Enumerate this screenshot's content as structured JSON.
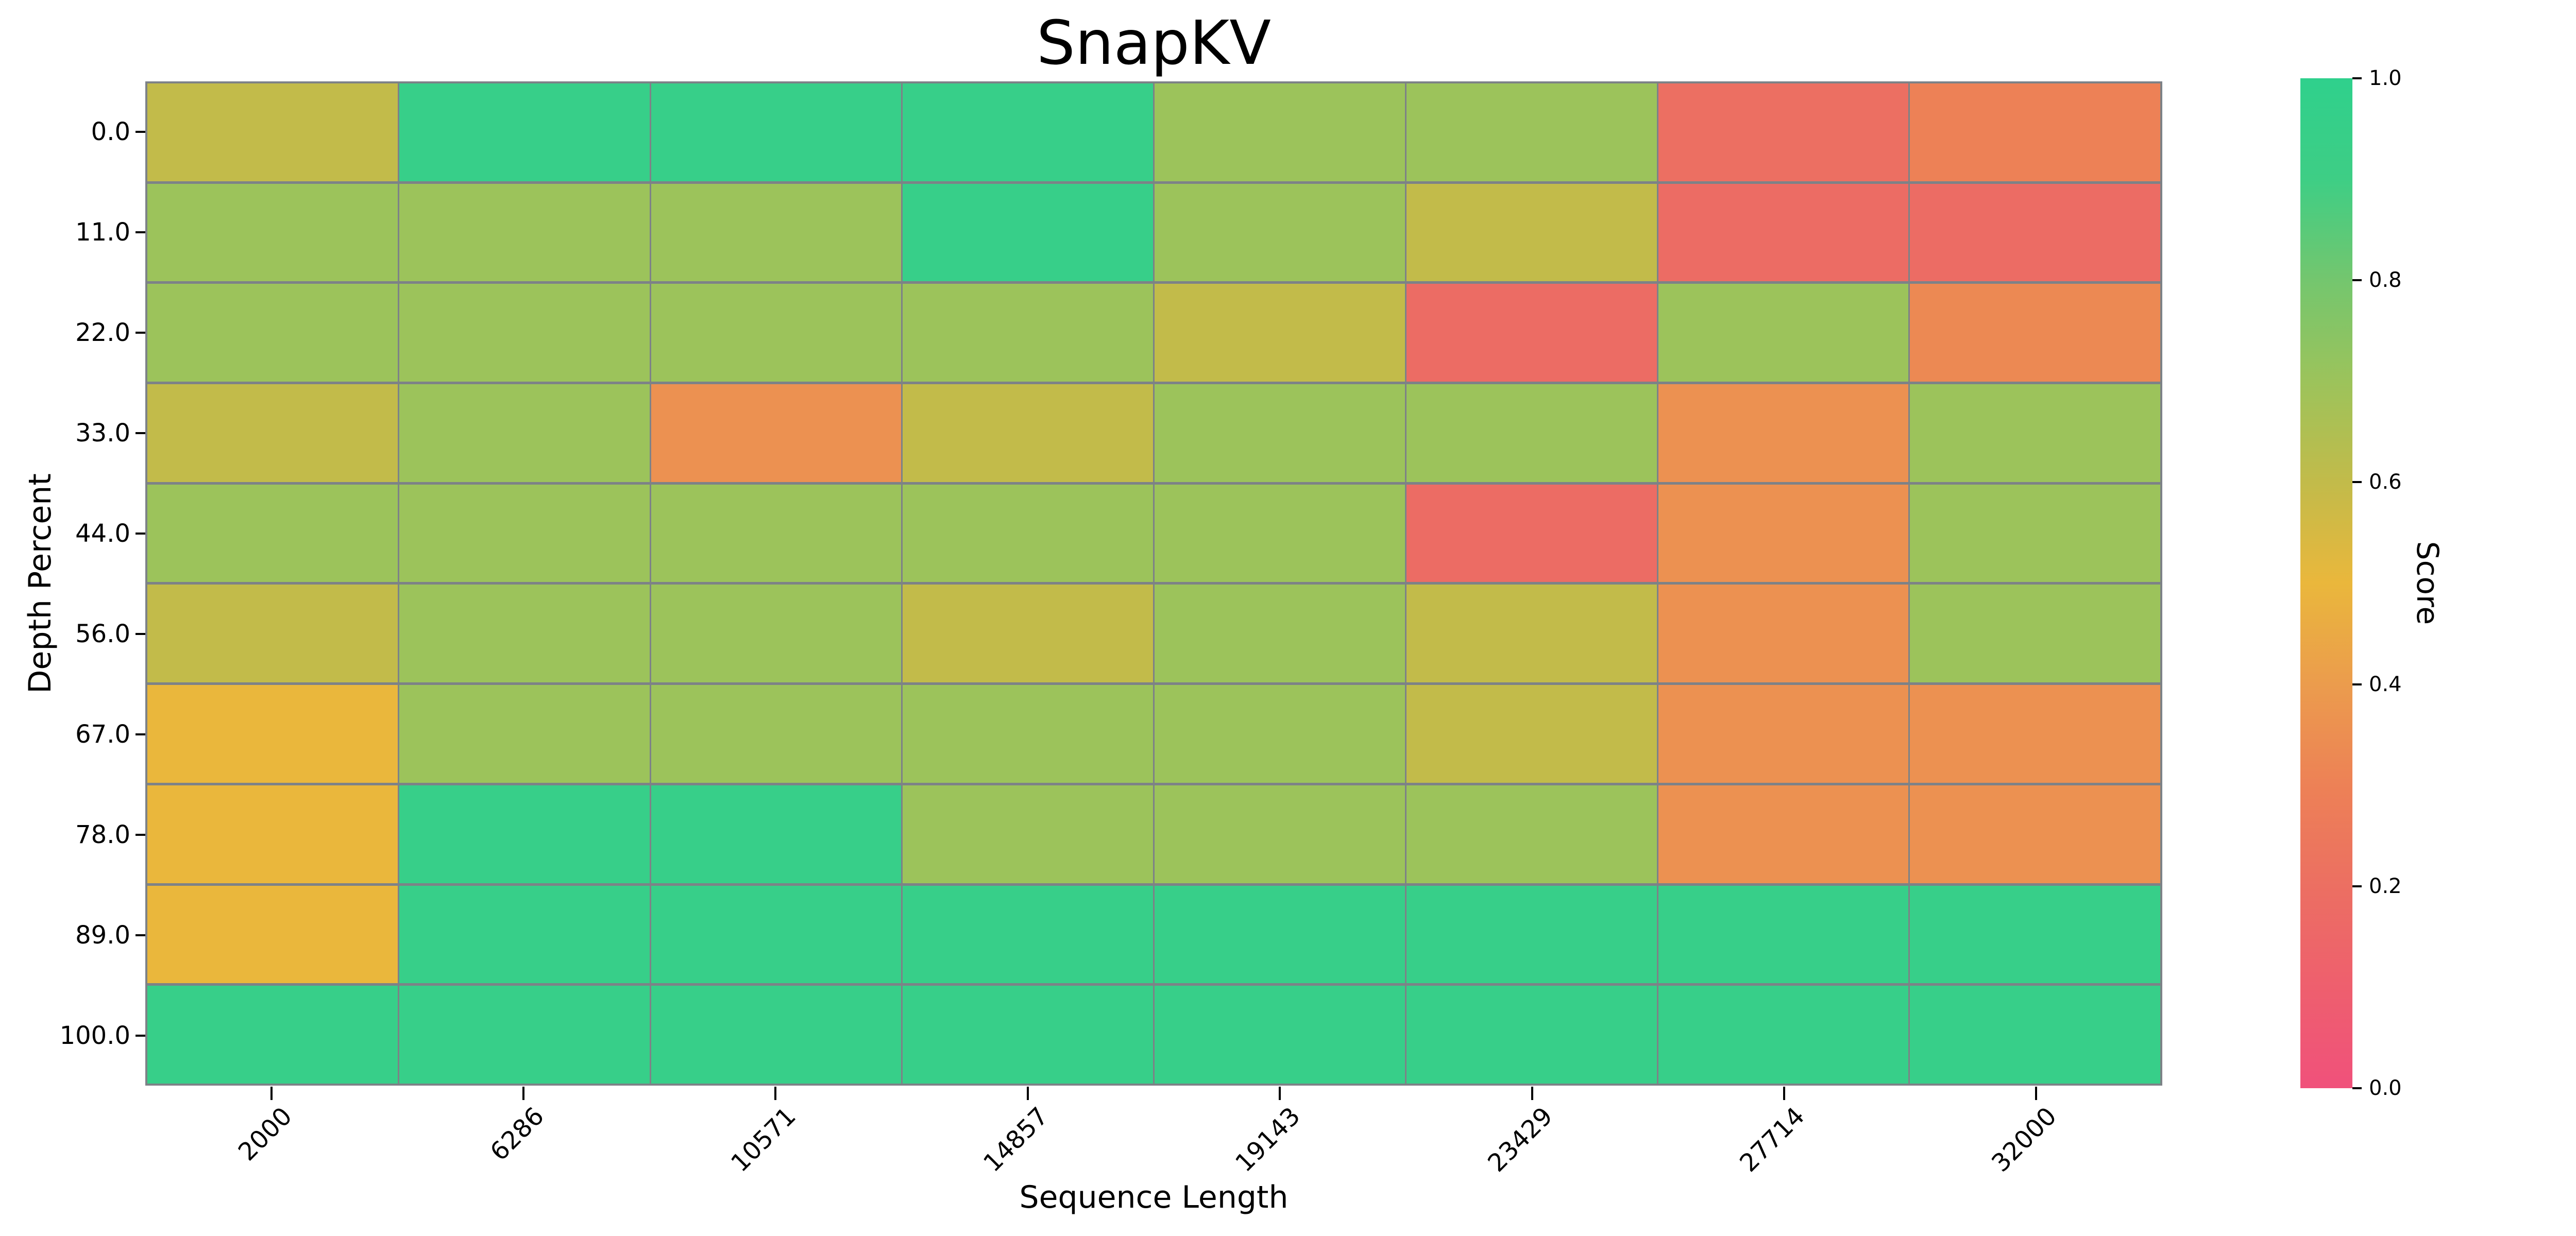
{
  "chart_data": {
    "type": "heatmap",
    "title": "SnapKV",
    "xlabel": "Sequence Length",
    "ylabel": "Depth Percent",
    "colorbar_label": "Score",
    "x_ticks": [
      "2000",
      "6286",
      "10571",
      "14857",
      "19143",
      "23429",
      "27714",
      "32000"
    ],
    "y_ticks": [
      "0.0",
      "11.0",
      "22.0",
      "33.0",
      "44.0",
      "56.0",
      "67.0",
      "78.0",
      "89.0",
      "100.0"
    ],
    "colorbar_ticks": [
      "0.0",
      "0.2",
      "0.4",
      "0.6",
      "0.8",
      "1.0"
    ],
    "vmin": 0.0,
    "vmax": 1.0,
    "grid_on": true,
    "line_color": "#7d8287",
    "background": "#ffffff",
    "values": [
      [
        0.6,
        0.95,
        0.95,
        0.95,
        0.7,
        0.7,
        0.2,
        0.3
      ],
      [
        0.7,
        0.7,
        0.7,
        0.95,
        0.7,
        0.6,
        0.18,
        0.18
      ],
      [
        0.7,
        0.7,
        0.7,
        0.7,
        0.6,
        0.18,
        0.7,
        0.33
      ],
      [
        0.6,
        0.7,
        0.36,
        0.6,
        0.7,
        0.7,
        0.36,
        0.7
      ],
      [
        0.7,
        0.7,
        0.7,
        0.7,
        0.7,
        0.18,
        0.36,
        0.7
      ],
      [
        0.6,
        0.7,
        0.7,
        0.6,
        0.7,
        0.6,
        0.36,
        0.7
      ],
      [
        0.5,
        0.7,
        0.7,
        0.7,
        0.7,
        0.6,
        0.36,
        0.36
      ],
      [
        0.5,
        0.95,
        0.95,
        0.7,
        0.7,
        0.7,
        0.36,
        0.36
      ],
      [
        0.5,
        0.95,
        0.95,
        0.95,
        0.95,
        0.95,
        0.95,
        0.95
      ],
      [
        0.95,
        0.95,
        0.95,
        0.95,
        0.95,
        0.95,
        0.95,
        0.95
      ]
    ],
    "colormap_stops": [
      {
        "t": 0.0,
        "color": "#f0517b"
      },
      {
        "t": 0.1,
        "color": "#ee5f6e"
      },
      {
        "t": 0.2,
        "color": "#ec6f62"
      },
      {
        "t": 0.3,
        "color": "#ed8156"
      },
      {
        "t": 0.4,
        "color": "#eb9c4d"
      },
      {
        "t": 0.5,
        "color": "#eab73c"
      },
      {
        "t": 0.6,
        "color": "#c2bb4a"
      },
      {
        "t": 0.7,
        "color": "#9cc35b"
      },
      {
        "t": 0.8,
        "color": "#74c66e"
      },
      {
        "t": 0.9,
        "color": "#3ece85"
      },
      {
        "t": 1.0,
        "color": "#2fd08c"
      }
    ]
  }
}
